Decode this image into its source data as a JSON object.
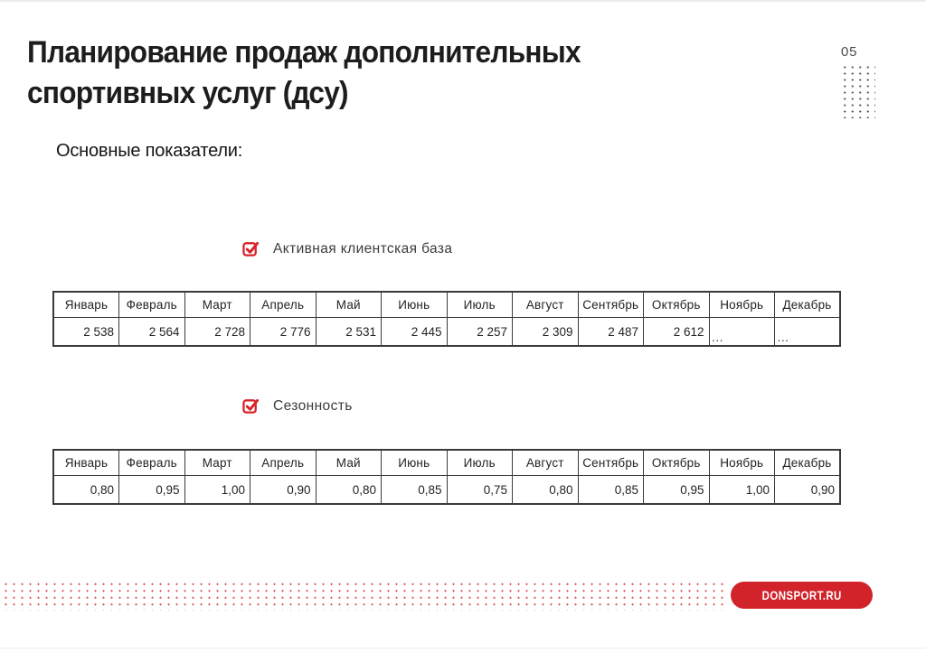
{
  "slide": {
    "title_line1": "Планирование продаж дополнительных",
    "title_line2": "спортивных услуг (дсу)",
    "page_number": "05",
    "section_heading": "Основные показатели:"
  },
  "metrics": [
    {
      "label": "Активная клиентская база",
      "months": [
        "Январь",
        "Февраль",
        "Март",
        "Апрель",
        "Май",
        "Июнь",
        "Июль",
        "Август",
        "Сентябрь",
        "Октябрь",
        "Ноябрь",
        "Декабрь"
      ],
      "values": [
        "2 538",
        "2 564",
        "2 728",
        "2 776",
        "2 531",
        "2 445",
        "2 257",
        "2 309",
        "2 487",
        "2 612",
        "…",
        "…"
      ]
    },
    {
      "label": "Сезонность",
      "months": [
        "Январь",
        "Февраль",
        "Март",
        "Апрель",
        "Май",
        "Июнь",
        "Июль",
        "Август",
        "Сентябрь",
        "Октябрь",
        "Ноябрь",
        "Декабрь"
      ],
      "values": [
        "0,80",
        "0,95",
        "1,00",
        "0,90",
        "0,80",
        "0,85",
        "0,75",
        "0,80",
        "0,85",
        "0,95",
        "1,00",
        "0,90"
      ]
    }
  ],
  "footer": {
    "site_badge": "DONSPORT.RU"
  },
  "colors": {
    "accent_red": "#d2222a",
    "footer_dots_red": "#dc555a",
    "corner_dots_gray": "#585858"
  }
}
